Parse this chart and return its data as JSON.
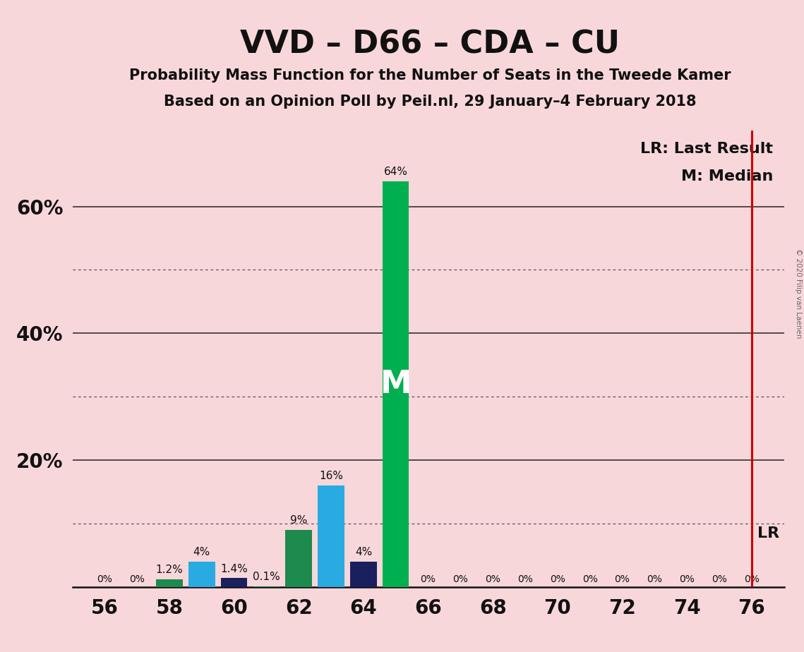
{
  "title": "VVD – D66 – CDA – CU",
  "subtitle1": "Probability Mass Function for the Number of Seats in the Tweede Kamer",
  "subtitle2": "Based on an Opinion Poll by Peil.nl, 29 January–4 February 2018",
  "copyright": "© 2020 Filip van Laenen",
  "background_color": "#f8d7da",
  "seats": [
    56,
    57,
    58,
    59,
    60,
    61,
    62,
    63,
    64,
    65,
    66,
    67,
    68,
    69,
    70,
    71,
    72,
    73,
    74,
    75,
    76
  ],
  "probabilities": [
    0.0,
    0.0,
    1.2,
    4.0,
    1.4,
    0.1,
    9.0,
    16.0,
    4.0,
    64.0,
    0.0,
    0.0,
    0.0,
    0.0,
    0.0,
    0.0,
    0.0,
    0.0,
    0.0,
    0.0,
    0.0
  ],
  "bar_colors": [
    "#29abe2",
    "#29abe2",
    "#1d8a4e",
    "#29abe2",
    "#1a1f5e",
    "#1d8a4e",
    "#1d8a4e",
    "#29abe2",
    "#1a1f5e",
    "#00b050",
    "#29abe2",
    "#29abe2",
    "#29abe2",
    "#29abe2",
    "#29abe2",
    "#29abe2",
    "#29abe2",
    "#29abe2",
    "#29abe2",
    "#29abe2",
    "#29abe2"
  ],
  "median_seat": 65,
  "lr_seat": 76,
  "lr_line_color": "#cc0000",
  "bar_label_fontsize": 11,
  "title_fontsize": 32,
  "subtitle_fontsize": 15,
  "axis_tick_fontsize": 20,
  "legend_fontsize": 16,
  "ylim": [
    0,
    72
  ],
  "xlim": [
    55.0,
    77.0
  ],
  "solid_grid_lines": [
    20,
    40,
    60
  ],
  "dotted_grid_lines": [
    10,
    30,
    50
  ],
  "ytick_labeled": [
    20,
    40,
    60
  ],
  "grid_dotted_color": "#555555",
  "grid_solid_color": "#222222",
  "spine_color": "#111111"
}
